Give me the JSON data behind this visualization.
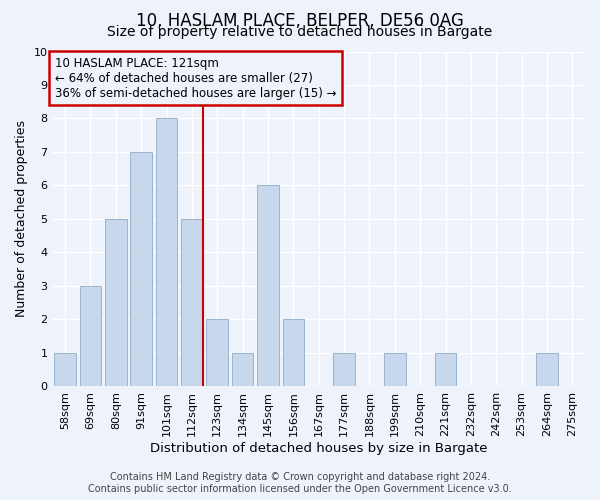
{
  "title": "10, HASLAM PLACE, BELPER, DE56 0AG",
  "subtitle": "Size of property relative to detached houses in Bargate",
  "xlabel": "Distribution of detached houses by size in Bargate",
  "ylabel": "Number of detached properties",
  "categories": [
    "58sqm",
    "69sqm",
    "80sqm",
    "91sqm",
    "101sqm",
    "112sqm",
    "123sqm",
    "134sqm",
    "145sqm",
    "156sqm",
    "167sqm",
    "177sqm",
    "188sqm",
    "199sqm",
    "210sqm",
    "221sqm",
    "232sqm",
    "242sqm",
    "253sqm",
    "264sqm",
    "275sqm"
  ],
  "values": [
    1,
    3,
    5,
    7,
    8,
    5,
    2,
    1,
    6,
    2,
    0,
    1,
    0,
    1,
    0,
    1,
    0,
    0,
    0,
    1,
    0
  ],
  "bar_color": "#c8d8ec",
  "bar_edgecolor": "#9ab4cc",
  "red_line_index": 5,
  "red_line_color": "#cc0000",
  "annotation_line1": "10 HASLAM PLACE: 121sqm",
  "annotation_line2": "← 64% of detached houses are smaller (27)",
  "annotation_line3": "36% of semi-detached houses are larger (15) →",
  "ylim": [
    0,
    10
  ],
  "yticks": [
    0,
    1,
    2,
    3,
    4,
    5,
    6,
    7,
    8,
    9,
    10
  ],
  "background_color": "#eef2fb",
  "grid_color": "#ffffff",
  "footer_line1": "Contains HM Land Registry data © Crown copyright and database right 2024.",
  "footer_line2": "Contains public sector information licensed under the Open Government Licence v3.0.",
  "title_fontsize": 12,
  "subtitle_fontsize": 10,
  "xlabel_fontsize": 9.5,
  "ylabel_fontsize": 9,
  "tick_fontsize": 8,
  "footer_fontsize": 7
}
